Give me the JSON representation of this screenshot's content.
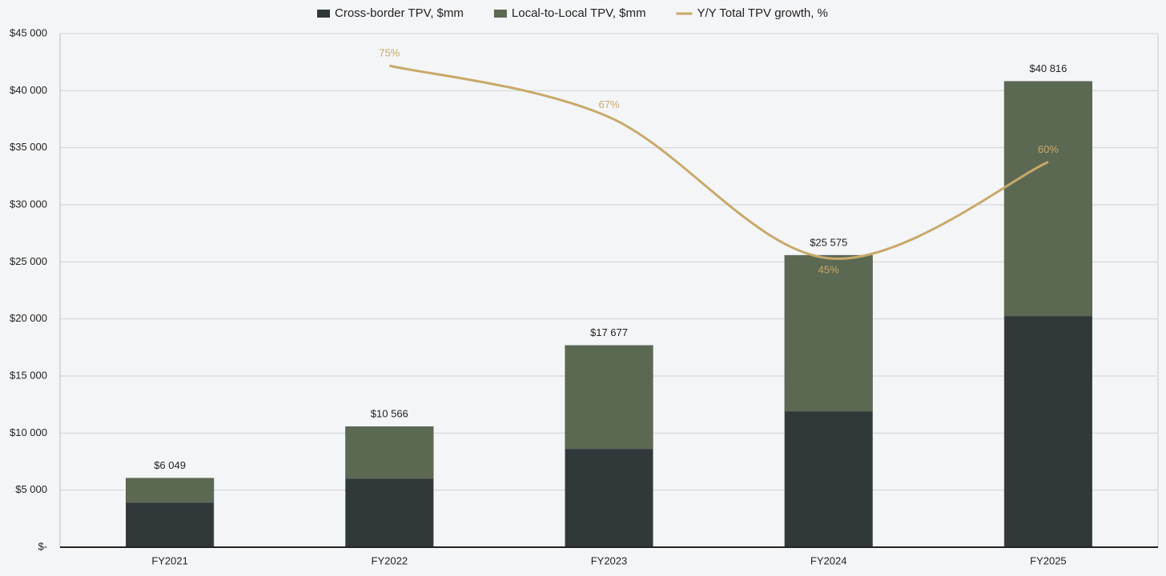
{
  "chart_data": {
    "type": "stacked_bar_line",
    "categories": [
      "FY2021",
      "FY2022",
      "FY2023",
      "FY2024",
      "FY2025"
    ],
    "series": [
      {
        "name": "Cross-border TPV, $mm",
        "color": "#30383a",
        "values": [
          3900,
          6000,
          8600,
          11900,
          20250
        ]
      },
      {
        "name": "Local-to-Local TPV, $mm",
        "color": "#5c6952",
        "values": [
          2149,
          4566,
          9077,
          13675,
          20566
        ]
      },
      {
        "name": "Y/Y Total TPV growth, %",
        "color": "#c8a96a",
        "axis": "y2",
        "values": [
          null,
          75,
          67,
          45,
          60
        ],
        "value_labels": [
          null,
          "75%",
          "67%",
          "45%",
          "60%"
        ]
      }
    ],
    "totals": {
      "values": [
        6049,
        10566,
        17677,
        25575,
        40816
      ],
      "value_labels": [
        "$6 049",
        "$10 566",
        "$17 677",
        "$25 575",
        "$40 816"
      ]
    },
    "ylim": [
      0,
      45000
    ],
    "yticks": [
      {
        "value": 0,
        "label": "$-"
      },
      {
        "value": 5000,
        "label": "$5 000"
      },
      {
        "value": 10000,
        "label": "$10 000"
      },
      {
        "value": 15000,
        "label": "$15 000"
      },
      {
        "value": 20000,
        "label": "$20 000"
      },
      {
        "value": 25000,
        "label": "$25 000"
      },
      {
        "value": 30000,
        "label": "$30 000"
      },
      {
        "value": 35000,
        "label": "$35 000"
      },
      {
        "value": 40000,
        "label": "$40 000"
      },
      {
        "value": 45000,
        "label": "$45 000"
      }
    ],
    "y2lim": [
      0,
      80
    ],
    "grid": true,
    "legend": "top"
  }
}
